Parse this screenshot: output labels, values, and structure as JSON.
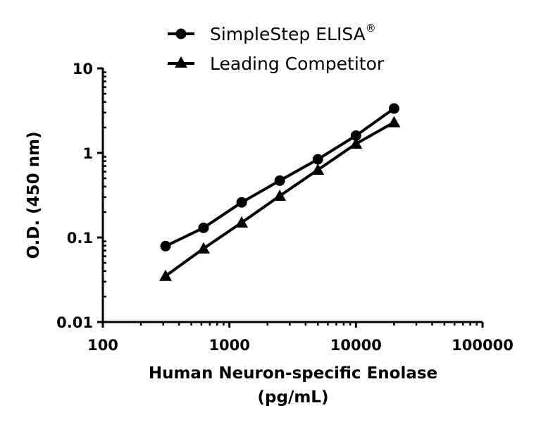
{
  "chart_data": {
    "type": "line",
    "title": "",
    "xlabel": "Human Neuron-specific Enolase\n(pg/mL)",
    "xlabel_lines": [
      "Human Neuron-specific Enolase",
      "(pg/mL)"
    ],
    "ylabel": "O.D. (450 nm)",
    "xscale": "log",
    "yscale": "log",
    "xlim": [
      100,
      100000
    ],
    "ylim": [
      0.01,
      10
    ],
    "xticks": [
      100,
      1000,
      10000,
      100000
    ],
    "xtick_labels": [
      "100",
      "1000",
      "10000",
      "100000"
    ],
    "yticks": [
      0.01,
      0.1,
      1,
      10
    ],
    "ytick_labels": [
      "0.01",
      "0.1",
      "1",
      "10"
    ],
    "grid": false,
    "legend_position": "top-center",
    "x": [
      313,
      625,
      1250,
      2500,
      5000,
      10000,
      20000
    ],
    "series": [
      {
        "name": "SimpleStep ELISA®",
        "name_base": "SimpleStep ELISA",
        "name_sup": "®",
        "marker": "circle",
        "color": "#000000",
        "values": [
          0.079,
          0.13,
          0.26,
          0.47,
          0.84,
          1.6,
          3.35
        ]
      },
      {
        "name": "Leading Competitor",
        "marker": "triangle",
        "color": "#000000",
        "values": [
          0.035,
          0.074,
          0.15,
          0.31,
          0.63,
          1.28,
          2.3
        ]
      }
    ]
  }
}
